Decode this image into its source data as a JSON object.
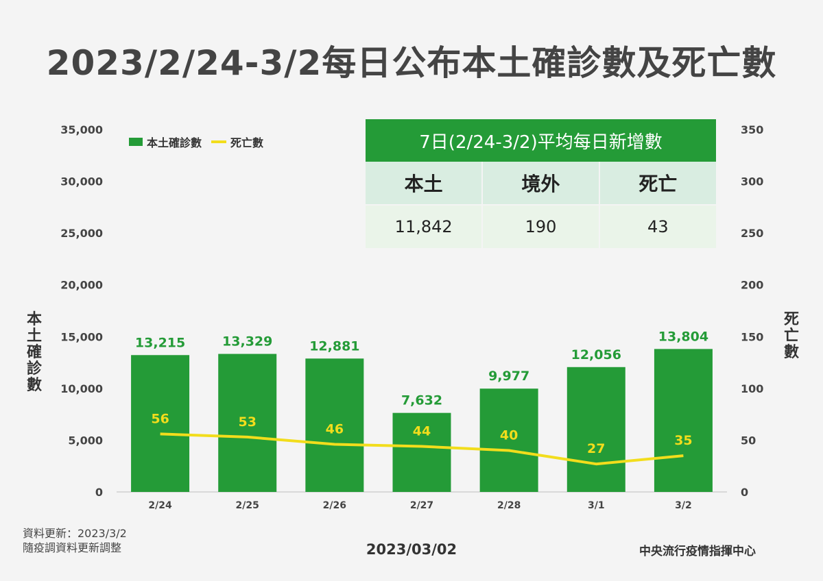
{
  "title": "2023/2/24-3/2每日公布本土確診數及死亡數",
  "left_axis_title": "本土確診數",
  "right_axis_title": "死亡數",
  "legend": {
    "bar_label": "本土確診數",
    "line_label": "死亡數",
    "placement": "top-left"
  },
  "summary_table": {
    "header": "7日(2/24-3/2)平均每日新增數",
    "columns": [
      "本土",
      "境外",
      "死亡"
    ],
    "values": [
      "11,842",
      "190",
      "43"
    ]
  },
  "chart_data": {
    "type": "bar",
    "categories": [
      "2/24",
      "2/25",
      "2/26",
      "2/27",
      "2/28",
      "3/1",
      "3/2"
    ],
    "series": [
      {
        "name": "本土確診數",
        "type": "bar",
        "axis": "left",
        "values": [
          13215,
          13329,
          12881,
          7632,
          9977,
          12056,
          13804
        ],
        "labels": [
          "13,215",
          "13,329",
          "12,881",
          "7,632",
          "9,977",
          "12,056",
          "13,804"
        ]
      },
      {
        "name": "死亡數",
        "type": "line",
        "axis": "right",
        "values": [
          56,
          53,
          46,
          44,
          40,
          27,
          35
        ],
        "labels": [
          "56",
          "53",
          "46",
          "44",
          "40",
          "27",
          "35"
        ]
      }
    ],
    "left_axis": {
      "range": [
        0,
        35000
      ],
      "ticks": [
        "0",
        "5,000",
        "10,000",
        "15,000",
        "20,000",
        "25,000",
        "30,000",
        "35,000"
      ]
    },
    "right_axis": {
      "range": [
        0,
        350
      ],
      "ticks": [
        "0",
        "50",
        "100",
        "150",
        "200",
        "250",
        "300",
        "350"
      ]
    },
    "grid": false,
    "colors": {
      "bar": "#249b37",
      "line": "#f2dd1c",
      "bar_label": "#249b37",
      "line_label": "#f2dd1c"
    }
  },
  "footer": {
    "update_note": "資料更新：2023/3/2",
    "adjust_note": "隨疫調資料更新調整",
    "date": "2023/03/02",
    "agency": "中央流行疫情指揮中心"
  }
}
